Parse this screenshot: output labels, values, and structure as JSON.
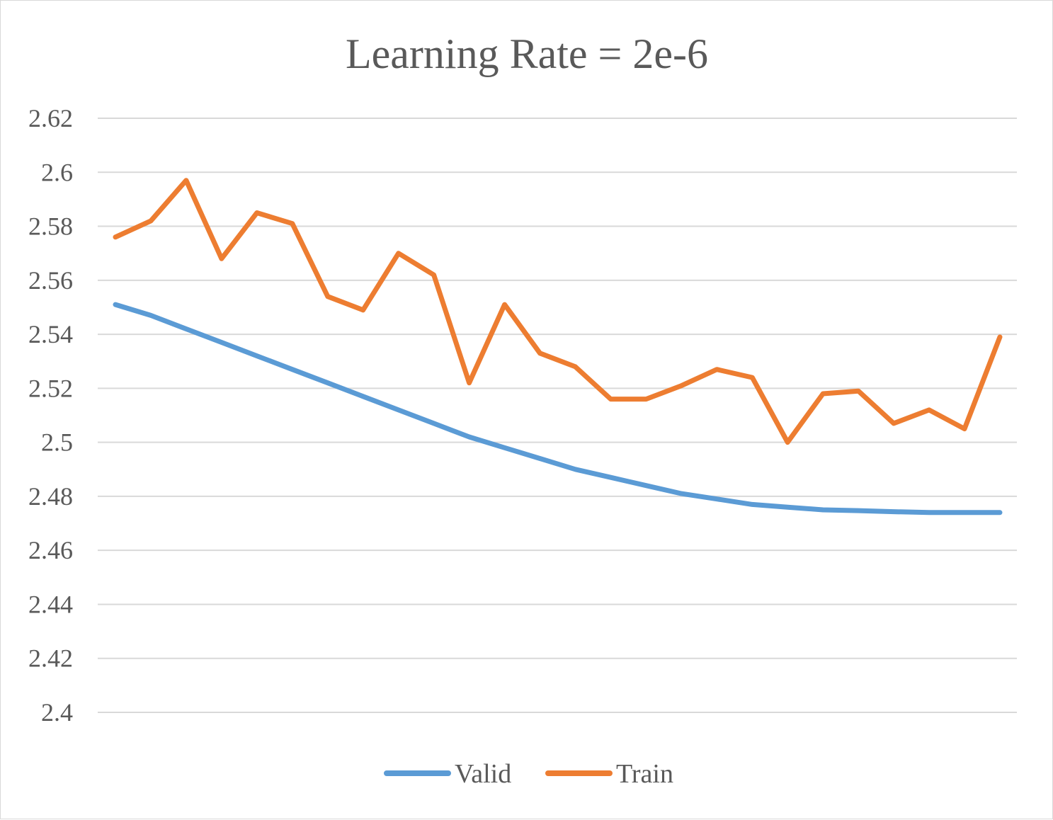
{
  "chart_data": {
    "type": "line",
    "title": "Learning Rate = 2e-6",
    "xlabel": "",
    "ylabel": "",
    "ylim": [
      2.4,
      2.62
    ],
    "y_ticks": [
      "2.4",
      "2.42",
      "2.44",
      "2.46",
      "2.48",
      "2.5",
      "2.52",
      "2.54",
      "2.56",
      "2.58",
      "2.6",
      "2.62"
    ],
    "y_tick_values": [
      2.4,
      2.42,
      2.44,
      2.46,
      2.48,
      2.5,
      2.52,
      2.54,
      2.56,
      2.58,
      2.6,
      2.62
    ],
    "grid": true,
    "legend_position": "bottom",
    "x": [
      1,
      2,
      3,
      4,
      5,
      6,
      7,
      8,
      9,
      10,
      11,
      12,
      13,
      14,
      15,
      16,
      17,
      18,
      19,
      20,
      21,
      22,
      23,
      24,
      25,
      26
    ],
    "series": [
      {
        "name": "Valid",
        "color": "#5b9bd5",
        "values": [
          2.551,
          2.547,
          2.542,
          2.537,
          2.532,
          2.527,
          2.522,
          2.517,
          2.512,
          2.507,
          2.502,
          2.498,
          2.494,
          2.49,
          2.487,
          2.484,
          2.481,
          2.479,
          2.477,
          2.476,
          2.475,
          2.4747,
          2.4743,
          2.474,
          2.474,
          2.474
        ]
      },
      {
        "name": "Train",
        "color": "#ed7d31",
        "values": [
          2.576,
          2.582,
          2.597,
          2.568,
          2.585,
          2.581,
          2.554,
          2.549,
          2.57,
          2.562,
          2.522,
          2.551,
          2.533,
          2.528,
          2.516,
          2.516,
          2.521,
          2.527,
          2.524,
          2.5,
          2.518,
          2.519,
          2.507,
          2.512,
          2.505,
          2.539
        ]
      }
    ]
  }
}
